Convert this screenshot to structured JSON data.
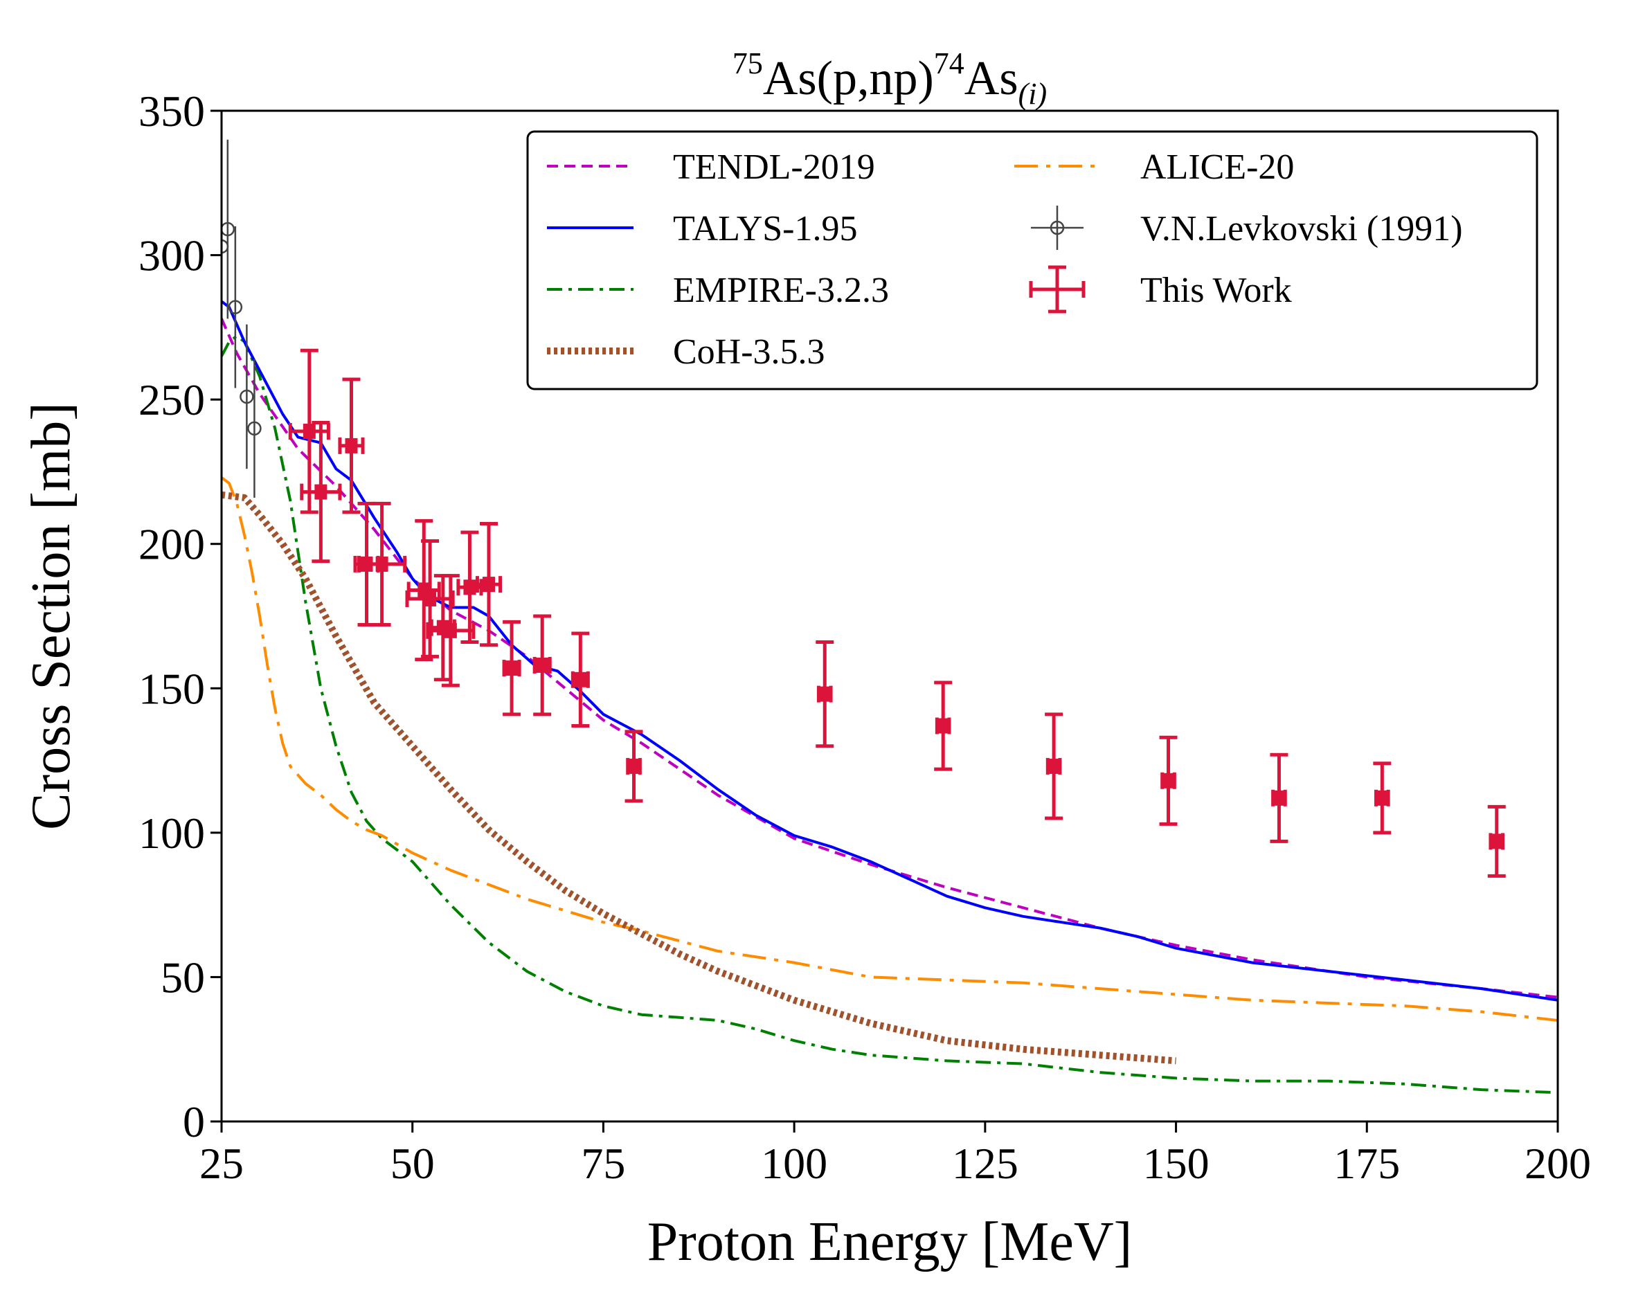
{
  "chart_data": {
    "type": "line",
    "title": {
      "pre_sup": "75",
      "main1": "As(p,np)",
      "mid_sup": "74",
      "main2": "As",
      "sub": "(i)"
    },
    "xlabel": "Proton Energy [MeV]",
    "ylabel": "Cross Section [mb]",
    "xlim": [
      25,
      200
    ],
    "ylim": [
      0,
      350
    ],
    "xticks": [
      25,
      50,
      75,
      100,
      125,
      150,
      175,
      200
    ],
    "yticks": [
      0,
      50,
      100,
      150,
      200,
      250,
      300,
      350
    ],
    "legend_position": "top-right",
    "series": [
      {
        "name": "TENDL-2019",
        "kind": "line",
        "color": "#c000c0",
        "dash": "dashed",
        "x": [
          25,
          27,
          30,
          35,
          40,
          45,
          50,
          55,
          60,
          65,
          70,
          75,
          80,
          90,
          100,
          110,
          120,
          130,
          140,
          150,
          160,
          175,
          190,
          200
        ],
        "y": [
          278,
          266,
          252,
          233,
          220,
          205,
          188,
          177,
          170,
          161,
          150,
          139,
          131,
          113,
          98,
          89,
          81,
          74,
          67,
          61,
          56,
          50,
          46,
          43
        ]
      },
      {
        "name": "TALYS-1.95",
        "kind": "line",
        "color": "#0000ff",
        "dash": "solid",
        "x": [
          25,
          26,
          28,
          30,
          33,
          35,
          38,
          40,
          42,
          45,
          48,
          50,
          52,
          55,
          58,
          60,
          63,
          66,
          69,
          72,
          75,
          80,
          85,
          90,
          95,
          100,
          105,
          110,
          115,
          120,
          125,
          130,
          135,
          140,
          145,
          150,
          160,
          170,
          180,
          190,
          200
        ],
        "y": [
          284,
          282,
          270,
          260,
          245,
          237,
          235,
          226,
          222,
          209,
          197,
          188,
          182,
          178,
          178,
          175,
          165,
          158,
          156,
          149,
          141,
          134,
          125,
          115,
          106,
          99,
          95,
          90,
          84,
          78,
          74,
          71,
          69,
          67,
          64,
          60,
          55,
          52,
          49,
          46,
          42
        ]
      },
      {
        "name": "EMPIRE-3.2.3",
        "kind": "line",
        "color": "#008000",
        "dash": "dashdot",
        "x": [
          25,
          26,
          27,
          28,
          30,
          32,
          34,
          36,
          38,
          40,
          42,
          44,
          46,
          48,
          50,
          55,
          60,
          65,
          70,
          75,
          80,
          85,
          90,
          95,
          100,
          105,
          110,
          120,
          130,
          140,
          150,
          160,
          170,
          180,
          190,
          200
        ],
        "y": [
          265,
          270,
          272,
          270,
          258,
          240,
          215,
          180,
          150,
          130,
          114,
          104,
          98,
          94,
          90,
          75,
          62,
          52,
          45,
          40,
          37,
          36,
          35,
          32,
          28,
          25,
          23,
          21,
          20,
          17,
          15,
          14,
          14,
          13,
          11,
          10
        ]
      },
      {
        "name": "CoH-3.5.3",
        "kind": "line",
        "color": "#a0522d",
        "dash": "dotted",
        "x": [
          25,
          28,
          30,
          33,
          36,
          40,
          45,
          50,
          55,
          60,
          65,
          70,
          75,
          80,
          85,
          90,
          95,
          100,
          105,
          110,
          115,
          120,
          130,
          140,
          150
        ],
        "y": [
          217,
          216,
          210,
          200,
          188,
          168,
          145,
          130,
          115,
          101,
          90,
          80,
          72,
          65,
          58,
          52,
          47,
          42,
          38,
          34,
          31,
          28,
          25,
          23,
          21
        ]
      },
      {
        "name": "ALICE-20",
        "kind": "line",
        "color": "#ff8c00",
        "dash": "longdashdot",
        "x": [
          25,
          26,
          27,
          28,
          29,
          30,
          31,
          32,
          33,
          34,
          36,
          38,
          40,
          42,
          44,
          46,
          48,
          50,
          55,
          60,
          65,
          70,
          75,
          80,
          90,
          100,
          110,
          120,
          130,
          140,
          150,
          160,
          170,
          180,
          190,
          200
        ],
        "y": [
          223,
          221,
          214,
          203,
          190,
          175,
          158,
          143,
          131,
          123,
          117,
          113,
          108,
          104,
          101,
          99,
          96,
          93,
          87,
          82,
          77,
          73,
          69,
          66,
          59,
          55,
          50,
          49,
          48,
          46,
          44,
          42,
          41,
          40,
          38,
          35
        ]
      },
      {
        "name": "V.N.Levkovski (1991)",
        "kind": "errorbar",
        "color": "#444444",
        "marker": "open-circle",
        "x": [
          25.0,
          25.8,
          26.8,
          28.3,
          29.3
        ],
        "y": [
          303,
          309,
          282,
          251,
          240
        ],
        "yerr": [
          31,
          31,
          28,
          25,
          24
        ]
      },
      {
        "name": "This Work",
        "kind": "errorbar",
        "color": "#dc143c",
        "marker": "square",
        "x": [
          36.5,
          38.0,
          42.0,
          44.0,
          46.0,
          51.5,
          52.3,
          54.0,
          55.0,
          57.5,
          60.0,
          63.0,
          67.0,
          72.0,
          79.0,
          104.0,
          119.5,
          134.0,
          149.0,
          163.5,
          177.0,
          192.0
        ],
        "y": [
          239,
          218,
          234,
          193,
          193,
          184,
          181,
          171,
          170,
          185,
          186,
          157,
          158,
          153,
          123,
          148,
          137,
          123,
          118,
          112,
          112,
          97
        ],
        "yerr": [
          28,
          24,
          23,
          21,
          21,
          24,
          20,
          18,
          19,
          19,
          21,
          16,
          17,
          16,
          12,
          18,
          15,
          18,
          15,
          15,
          12,
          12
        ],
        "xerr": [
          2.5,
          2.5,
          1.5,
          1.5,
          3.0,
          2.0,
          3.0,
          1.5,
          3.0,
          1.5,
          1.5,
          1.0,
          1.0,
          1.0,
          0.8,
          0.8,
          0.8,
          0.8,
          0.8,
          0.8,
          0.8,
          0.8
        ]
      }
    ]
  }
}
